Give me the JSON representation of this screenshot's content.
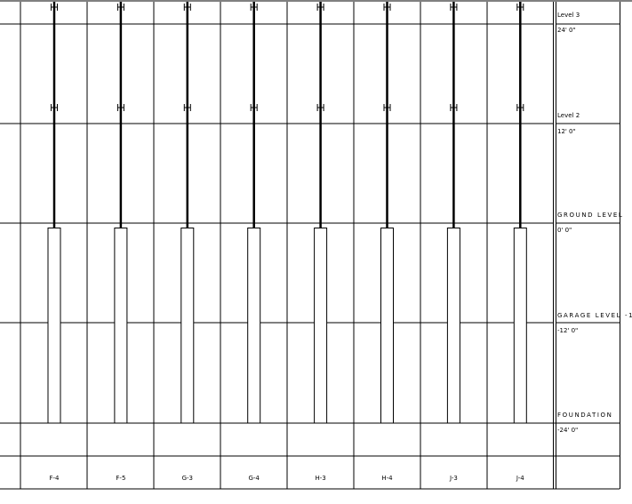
{
  "schedule": {
    "columns": [
      "F-4",
      "F-5",
      "G-3",
      "G-4",
      "H-3",
      "H-4",
      "J-3",
      "J-4"
    ],
    "levels": [
      {
        "name": "Level 3",
        "elevation": "24'  0\""
      },
      {
        "name": "Level 2",
        "elevation": "12'  0\""
      },
      {
        "name": "GROUND LEVEL",
        "elevation": "0'  0\""
      },
      {
        "name": "GARAGE LEVEL -1",
        "elevation": "-12'  0\""
      },
      {
        "name": "FOUNDATION",
        "elevation": "-24'  0\""
      }
    ],
    "line_color": "#000000",
    "top_border_color": "#808080"
  }
}
